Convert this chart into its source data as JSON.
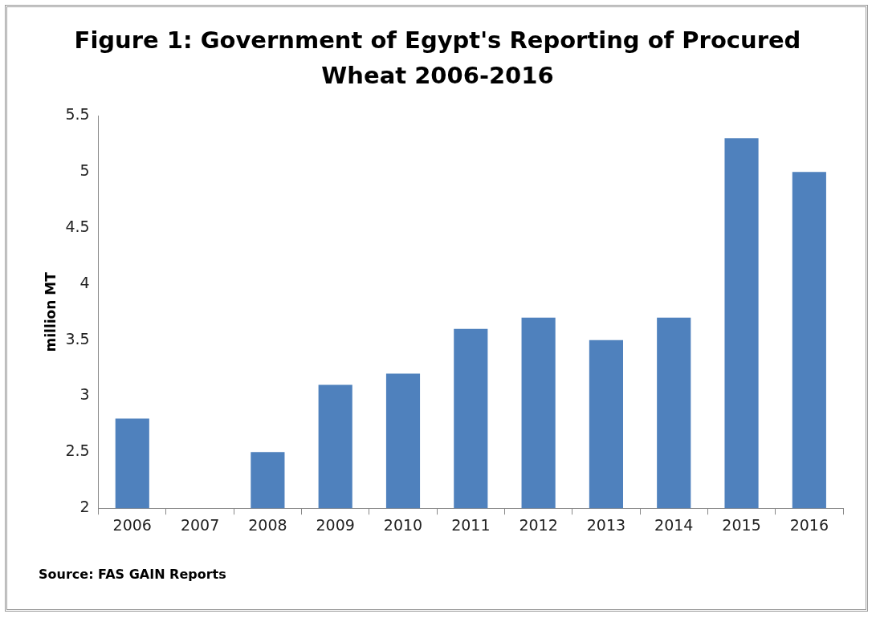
{
  "chart_data": {
    "type": "bar",
    "title": "Figure 1: Government of Egypt's Reporting of Procured Wheat 2006-2016",
    "ylabel": "million MT",
    "categories": [
      "2006",
      "2007",
      "2008",
      "2009",
      "2010",
      "2011",
      "2012",
      "2013",
      "2014",
      "2015",
      "2016"
    ],
    "values": [
      2.8,
      null,
      2.5,
      3.1,
      3.2,
      3.6,
      3.7,
      3.5,
      3.7,
      5.3,
      5.0
    ],
    "color": "#4f81bd",
    "ylim": [
      2,
      5.5
    ],
    "yticks": [
      2,
      2.5,
      3,
      3.5,
      4,
      4.5,
      5,
      5.5
    ],
    "grid": false,
    "legend": false,
    "annotations": [
      "Source: FAS GAIN Reports"
    ]
  }
}
